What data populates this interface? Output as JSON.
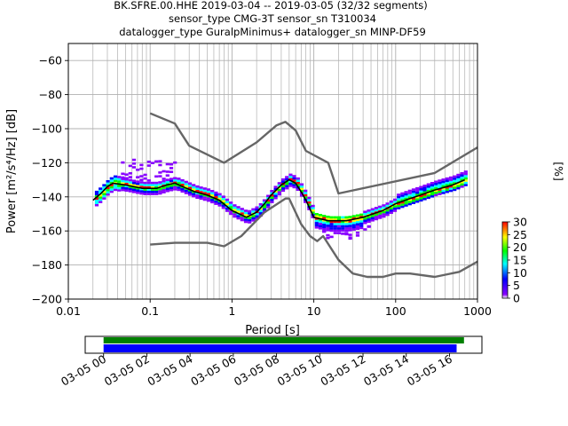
{
  "header": {
    "title_lines": [
      "BK.SFRE.00.HHE   2019-03-04 -- 2019-03-05  (32/32 segments)",
      "sensor_type CMG-3T sensor_sn T310034",
      "datalogger_type GuralpMinimus+ datalogger_sn MINP-DF59"
    ]
  },
  "colors": {
    "grid": "#b0b0b0",
    "noise_model": "#666666",
    "mean_curve": "#000000",
    "coverage_top": "#008000",
    "coverage_bottom": "#0000ff"
  },
  "chart_data": [
    {
      "type": "heatmap",
      "title": "",
      "xlabel": "Period [s]",
      "ylabel": "Power [m²/s⁴/Hz] [dB]",
      "x_scale": "log",
      "xlim": [
        0.01,
        1000
      ],
      "ylim": [
        -200,
        -50
      ],
      "x_ticks": [
        0.01,
        0.1,
        1,
        10,
        100,
        1000
      ],
      "x_tick_labels": [
        "0.01",
        "0.1",
        "1",
        "10",
        "100",
        "1000"
      ],
      "y_ticks": [
        -200,
        -180,
        -160,
        -140,
        -120,
        -100,
        -80,
        -60
      ],
      "y_tick_labels": [
        "−200",
        "−180",
        "−160",
        "−140",
        "−120",
        "−100",
        "−80",
        "−60"
      ],
      "grid": true,
      "colorbar": {
        "label": "[%]",
        "ticks": [
          0,
          5,
          10,
          15,
          20,
          25,
          30
        ],
        "range": [
          0,
          30
        ],
        "colormap": [
          "#ffffff",
          "#8800ff",
          "#0000ff",
          "#00ffff",
          "#00ff00",
          "#ffff00",
          "#ff0000"
        ]
      },
      "series": [
        {
          "kind": "noise_model_high",
          "points": [
            [
              0.1,
              -91
            ],
            [
              0.2,
              -97
            ],
            [
              0.3,
              -110
            ],
            [
              0.8,
              -120
            ],
            [
              2.0,
              -108
            ],
            [
              3.5,
              -98
            ],
            [
              4.5,
              -96
            ],
            [
              6.0,
              -101
            ],
            [
              8.0,
              -113
            ],
            [
              15,
              -120
            ],
            [
              20,
              -138
            ],
            [
              300,
              -126
            ],
            [
              1000,
              -111
            ]
          ]
        },
        {
          "kind": "noise_model_low",
          "points": [
            [
              0.1,
              -168
            ],
            [
              0.2,
              -167
            ],
            [
              0.5,
              -167
            ],
            [
              0.8,
              -169
            ],
            [
              1.3,
              -163
            ],
            [
              2.5,
              -149
            ],
            [
              4.5,
              -141
            ],
            [
              5.0,
              -141
            ],
            [
              7.0,
              -156
            ],
            [
              9.0,
              -163
            ],
            [
              11,
              -166
            ],
            [
              13,
              -163
            ],
            [
              20,
              -177
            ],
            [
              30,
              -185
            ],
            [
              45,
              -187
            ],
            [
              70,
              -187
            ],
            [
              100,
              -185
            ],
            [
              150,
              -185
            ],
            [
              300,
              -187
            ],
            [
              600,
              -184
            ],
            [
              1000,
              -178
            ]
          ]
        },
        {
          "kind": "mean_psd",
          "points": [
            [
              0.02,
              -142
            ],
            [
              0.025,
              -138
            ],
            [
              0.03,
              -134
            ],
            [
              0.035,
              -132
            ],
            [
              0.05,
              -133
            ],
            [
              0.08,
              -135
            ],
            [
              0.12,
              -135
            ],
            [
              0.16,
              -133
            ],
            [
              0.2,
              -132
            ],
            [
              0.25,
              -134
            ],
            [
              0.35,
              -137
            ],
            [
              0.5,
              -139
            ],
            [
              0.7,
              -142
            ],
            [
              1.0,
              -148
            ],
            [
              1.5,
              -152
            ],
            [
              2.0,
              -149
            ],
            [
              2.5,
              -144
            ],
            [
              3.0,
              -139
            ],
            [
              4.0,
              -133
            ],
            [
              5.0,
              -130
            ],
            [
              6.0,
              -132
            ],
            [
              7.0,
              -137
            ],
            [
              8.0,
              -142
            ],
            [
              10,
              -152
            ],
            [
              15,
              -154
            ],
            [
              25,
              -154
            ],
            [
              40,
              -152
            ],
            [
              70,
              -148
            ],
            [
              100,
              -144
            ],
            [
              150,
              -141
            ],
            [
              200,
              -139
            ],
            [
              300,
              -136
            ],
            [
              500,
              -133
            ],
            [
              700,
              -130
            ]
          ]
        }
      ]
    },
    {
      "type": "timeline",
      "title": "",
      "x_tick_labels": [
        "03-05 00",
        "03-05 02",
        "03-05 04",
        "03-05 06",
        "03-05 08",
        "03-05 10",
        "03-05 12",
        "03-05 14",
        "03-05 16"
      ],
      "x_ticks_hours": [
        0,
        2,
        4,
        6,
        8,
        10,
        12,
        14,
        16
      ],
      "xlim_hours": [
        -0.85,
        17.5
      ],
      "bars": [
        {
          "kind": "data_coverage",
          "start_hours": 0,
          "end_hours": 16.67
        },
        {
          "kind": "psd_segments",
          "start_hours": 0,
          "end_hours": 16.33
        }
      ]
    }
  ]
}
